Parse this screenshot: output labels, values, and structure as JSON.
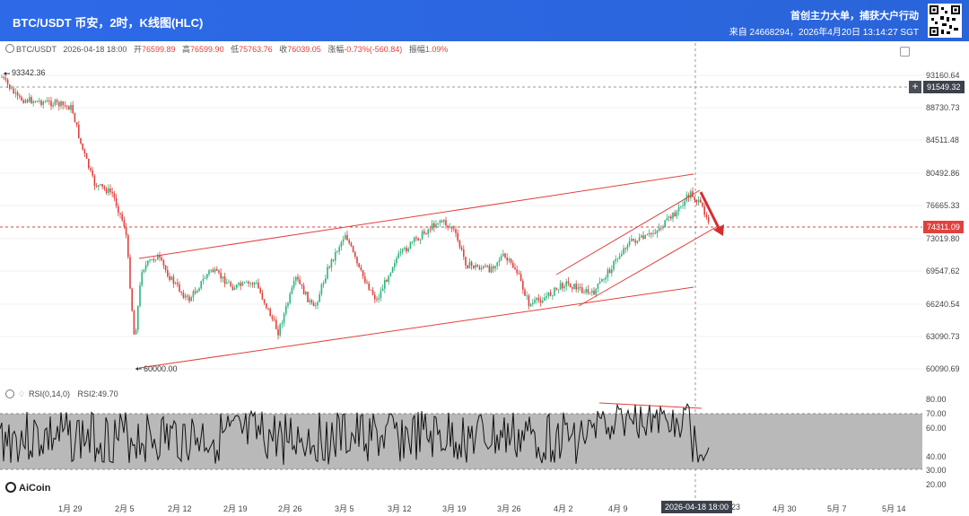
{
  "header": {
    "title": "BTC/USDT 币安，2时，K线图(HLC)",
    "promo": "首创主力大单，捕获大户行动",
    "meta": "来自 24668294，2026年4月20日 13:14:27 SGT"
  },
  "info": {
    "symbol": "BTC/USDT",
    "datetime": "2026-04-18 18:00",
    "open_label": "开",
    "open": "76599.89",
    "high_label": "高",
    "high": "76599.90",
    "low_label": "低",
    "low": "75763.76",
    "close_label": "收",
    "close": "76039.05",
    "change_label": "涨幅",
    "change": "-0.73%(-560.84)",
    "amp_label": "振幅",
    "amp": "1.09%"
  },
  "rsi": {
    "label": "RSI(0,14,0)",
    "value": "RSI2:49.70"
  },
  "price_axis": [
    "93160.64",
    "88730.73",
    "84511.48",
    "80492.86",
    "76665.33",
    "73019.80",
    "69547.62",
    "66240.54",
    "63090.73",
    "60090.69"
  ],
  "rsi_axis": [
    "80.00",
    "70.00",
    "60.00",
    "40.00",
    "30.00",
    "20.00"
  ],
  "crosshair_price": "91549.32",
  "last_price": "74311.09",
  "annotations": {
    "high": "93342.36",
    "low": "60000.00"
  },
  "x_axis": [
    "1月 29",
    "2月 5",
    "2月 12",
    "2月 19",
    "2月 26",
    "3月 5",
    "3月 12",
    "3月 19",
    "3月 26",
    "4月 2",
    "4月 9",
    "23",
    "4月 30",
    "5月 7",
    "5月 14"
  ],
  "x_highlight": "2026-04-18 18:00",
  "brand": "AiCoin",
  "colors": {
    "header": "#2d6ae8",
    "up": "#2fb37d",
    "down": "#e0413d",
    "channel": "#e0413d",
    "rsi_band": "#b9b9b9"
  },
  "chart_data": {
    "type": "candlestick",
    "symbol": "BTC/USDT",
    "interval": "2h",
    "ylim": [
      60000,
      93342.36
    ],
    "highest": 93342.36,
    "lowest": 60000.0,
    "last": 74311.09,
    "trend_channels": [
      {
        "name": "wide-channel",
        "kind": "ascending"
      },
      {
        "name": "short-channel",
        "kind": "ascending"
      }
    ],
    "rsi": {
      "period": 14,
      "current": 49.7,
      "band": [
        30,
        70
      ]
    }
  }
}
